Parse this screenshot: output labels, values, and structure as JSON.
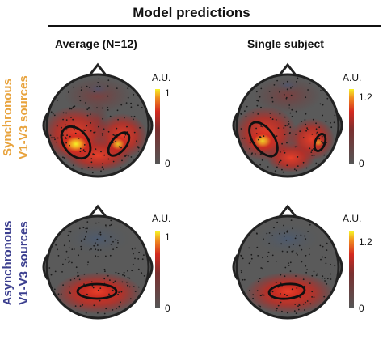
{
  "figure": {
    "title": "Model predictions",
    "columns": [
      {
        "label": "Average (N=12)"
      },
      {
        "label": "Single subject"
      }
    ],
    "rows": [
      {
        "label_line1": "Synchronous",
        "label_line2": "V1-V3 sources",
        "color": "#e8a33d"
      },
      {
        "label_line1": "Asynchronous",
        "label_line2": "V1-V3 sources",
        "color": "#3c3f8f"
      }
    ],
    "panels": [
      {
        "id": "sync-average",
        "pattern": "bilateral-lateral-occipital",
        "colorbar": {
          "unit": "A.U.",
          "max": "1",
          "min": "0"
        }
      },
      {
        "id": "sync-single",
        "pattern": "bilateral-lateral-occipital",
        "colorbar": {
          "unit": "A.U.",
          "max": "1.2",
          "min": "0"
        }
      },
      {
        "id": "async-average",
        "pattern": "medial-occipital",
        "colorbar": {
          "unit": "A.U.",
          "max": "1",
          "min": "0"
        }
      },
      {
        "id": "async-single",
        "pattern": "medial-occipital",
        "colorbar": {
          "unit": "A.U.",
          "max": "1.2",
          "min": "0"
        }
      }
    ],
    "colormap": {
      "low": "#555555",
      "mid": "#d42a20",
      "high": "#f6f226"
    }
  }
}
